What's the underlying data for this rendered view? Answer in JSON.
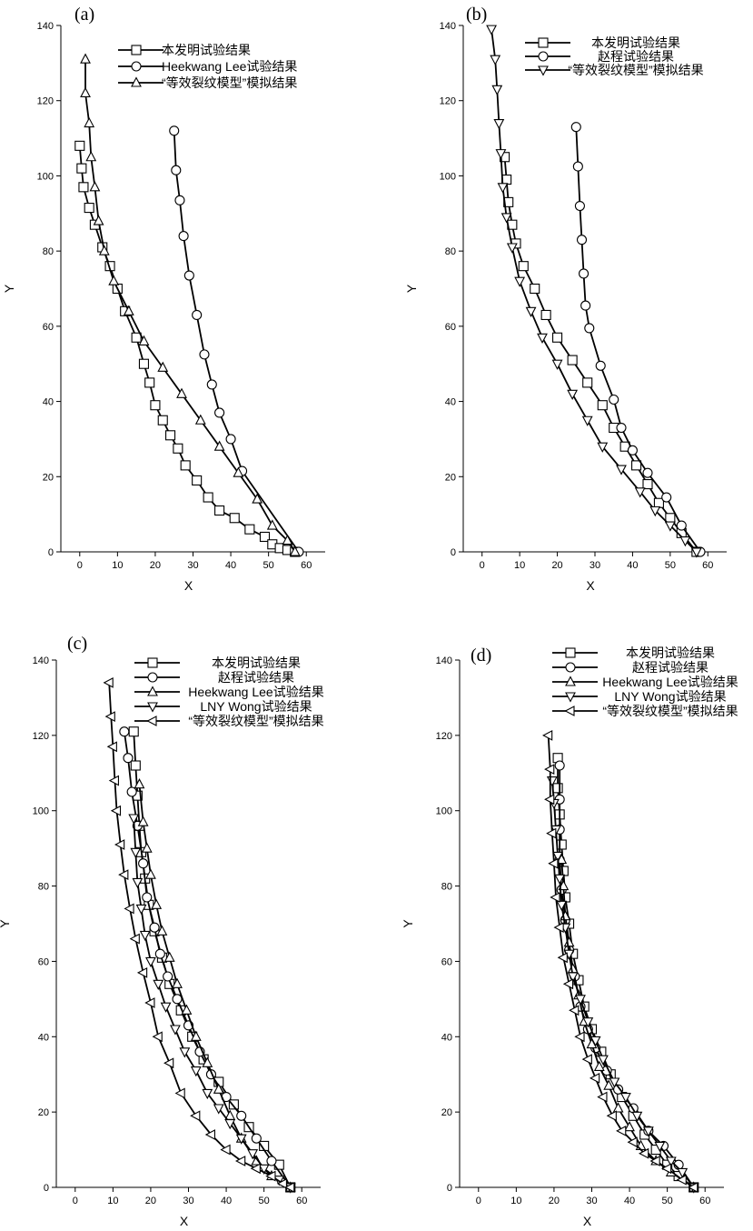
{
  "chart_data": [
    {
      "type": "line",
      "panel_label": "(a)",
      "xlabel": "X",
      "ylabel": "Y",
      "xlim": [
        -5,
        65
      ],
      "ylim": [
        0,
        140
      ],
      "xticks": [
        0,
        10,
        20,
        30,
        40,
        50,
        60
      ],
      "yticks": [
        0,
        20,
        40,
        60,
        80,
        100,
        120,
        140
      ],
      "grid": false,
      "legend_position": "top-right",
      "series": [
        {
          "name": "本发明试验结果",
          "marker": "square",
          "x": [
            0,
            0.5,
            1,
            2.5,
            4,
            6,
            8,
            10,
            12,
            15,
            17,
            18.5,
            20,
            22,
            24,
            26,
            28,
            31,
            34,
            37,
            41,
            45,
            49,
            51,
            53,
            55,
            57
          ],
          "y": [
            108,
            102,
            97,
            91.5,
            87,
            81,
            76,
            70,
            64,
            57,
            50,
            45,
            39,
            35,
            31,
            27.5,
            23,
            19,
            14.5,
            11,
            9,
            6,
            4,
            2,
            1,
            0.5,
            0
          ]
        },
        {
          "name": "Heekwang Lee试验结果",
          "marker": "circle",
          "x": [
            25,
            25.5,
            26.5,
            27.5,
            29,
            31,
            33,
            35,
            37,
            40,
            43,
            58
          ],
          "y": [
            112,
            101.5,
            93.5,
            84,
            73.5,
            63,
            52.5,
            44.5,
            37,
            30,
            21.5,
            0
          ]
        },
        {
          "name": "“等效裂纹模型”模拟结果",
          "marker": "triangle-up",
          "x": [
            1.5,
            1.5,
            2.5,
            3,
            4,
            5,
            6.5,
            9,
            13,
            17,
            22,
            27,
            32,
            37,
            42,
            47,
            51,
            55,
            57
          ],
          "y": [
            131,
            122,
            114,
            105,
            97,
            88,
            80,
            72,
            64,
            56,
            49,
            42,
            35,
            28,
            21,
            14,
            7,
            3,
            0
          ]
        }
      ]
    },
    {
      "type": "line",
      "panel_label": "(b)",
      "xlabel": "X",
      "ylabel": "Y",
      "xlim": [
        -5,
        65
      ],
      "ylim": [
        0,
        140
      ],
      "xticks": [
        0,
        10,
        20,
        30,
        40,
        50,
        60
      ],
      "yticks": [
        0,
        20,
        40,
        60,
        80,
        100,
        120,
        140
      ],
      "grid": false,
      "legend_position": "top-right",
      "series": [
        {
          "name": "本发明试验结果",
          "marker": "square",
          "x": [
            6,
            6.5,
            7,
            8,
            9,
            11,
            14,
            17,
            20,
            24,
            28,
            32,
            35,
            38,
            41,
            44,
            47,
            50,
            53,
            57
          ],
          "y": [
            105,
            99,
            93,
            87,
            82,
            76,
            70,
            63,
            57,
            51,
            45,
            39,
            33,
            28,
            23,
            18,
            13,
            9,
            5,
            0
          ]
        },
        {
          "name": "赵程试验结果",
          "marker": "circle",
          "x": [
            25,
            25.5,
            26,
            26.5,
            27,
            27.5,
            28.5,
            31.5,
            35,
            37,
            40,
            44,
            49,
            53,
            58
          ],
          "y": [
            113,
            102.5,
            92,
            83,
            74,
            65.5,
            59.5,
            49.5,
            40.5,
            33,
            27,
            21,
            14.5,
            7,
            0
          ]
        },
        {
          "name": "“等效裂纹模型”模拟结果",
          "marker": "triangle-down",
          "x": [
            2.5,
            3.5,
            4,
            4.5,
            5,
            5.5,
            6.5,
            8,
            10,
            13,
            16,
            20,
            24,
            28,
            32,
            37,
            42,
            46,
            50,
            54,
            57
          ],
          "y": [
            139,
            131,
            123,
            114,
            106,
            97,
            89,
            81,
            72,
            64,
            57,
            50,
            42,
            35,
            28,
            22,
            16,
            11,
            7,
            3,
            0
          ]
        }
      ]
    },
    {
      "type": "line",
      "panel_label": "(c)",
      "xlabel": "X",
      "ylabel": "Y",
      "xlim": [
        -5,
        65
      ],
      "ylim": [
        0,
        140
      ],
      "xticks": [
        0,
        10,
        20,
        30,
        40,
        50,
        60
      ],
      "yticks": [
        0,
        20,
        40,
        60,
        80,
        100,
        120,
        140
      ],
      "grid": false,
      "legend_position": "top-right",
      "series": [
        {
          "name": "本发明试验结果",
          "marker": "square",
          "x": [
            15.5,
            16,
            16.5,
            17,
            17.5,
            18.5,
            19.5,
            21,
            23,
            25,
            28,
            31,
            34,
            38,
            42,
            46,
            50,
            54,
            57
          ],
          "y": [
            121,
            112,
            104,
            96,
            89,
            82,
            75,
            68,
            61,
            54,
            47,
            40,
            34,
            28,
            22,
            16,
            11,
            6,
            0
          ]
        },
        {
          "name": "赵程试验结果",
          "marker": "circle",
          "x": [
            13,
            14,
            15,
            16.5,
            18,
            19,
            21,
            22.5,
            24.5,
            27,
            30,
            33,
            36,
            40,
            44,
            48,
            52,
            57
          ],
          "y": [
            121,
            114,
            105,
            96,
            86,
            77,
            69,
            62,
            56,
            50,
            43,
            36,
            30,
            24,
            19,
            13,
            7,
            0
          ]
        },
        {
          "name": "Heekwang Lee试验结果",
          "marker": "triangle-up",
          "x": [
            17,
            18,
            19,
            20,
            21.5,
            23,
            25,
            27,
            29.5,
            32,
            35,
            38,
            41,
            44,
            48,
            52,
            57
          ],
          "y": [
            107,
            97,
            90,
            83,
            75,
            68,
            61,
            54,
            47,
            40,
            33,
            26,
            19,
            13,
            7,
            3,
            0
          ]
        },
        {
          "name": "LNY Wong试验结果",
          "marker": "triangle-down",
          "x": [
            15.5,
            16,
            16.5,
            17.5,
            18.5,
            20,
            22,
            24,
            26.5,
            29,
            32,
            35,
            38,
            41,
            44,
            47,
            50,
            54,
            57
          ],
          "y": [
            98,
            89,
            81,
            74,
            67,
            60,
            54,
            48,
            42,
            36,
            31,
            25,
            21,
            17,
            13,
            9,
            5,
            2,
            0
          ]
        },
        {
          "name": "“等效裂纹模型”模拟结果",
          "marker": "triangle-left",
          "x": [
            9,
            9.5,
            10,
            10.5,
            11,
            12,
            13,
            14.5,
            16,
            18,
            20,
            22,
            25,
            28,
            32,
            36,
            40,
            44,
            48,
            52,
            55,
            57
          ],
          "y": [
            134,
            125,
            117,
            108,
            100,
            91,
            83,
            74,
            66,
            57,
            49,
            40,
            33,
            25,
            19,
            14,
            10,
            7,
            5,
            3,
            1,
            0
          ]
        }
      ]
    },
    {
      "type": "line",
      "panel_label": "(d)",
      "xlabel": "X",
      "ylabel": "Y",
      "xlim": [
        -5,
        65
      ],
      "ylim": [
        0,
        140
      ],
      "xticks": [
        0,
        10,
        20,
        30,
        40,
        50,
        60
      ],
      "yticks": [
        0,
        20,
        40,
        60,
        80,
        100,
        120,
        140
      ],
      "grid": false,
      "legend_position": "top-right",
      "series": [
        {
          "name": "本发明试验结果",
          "marker": "square",
          "x": [
            21,
            21,
            21.5,
            22,
            22.5,
            23,
            24,
            25,
            26.5,
            28,
            30,
            32.5,
            35,
            38,
            41,
            44,
            47,
            50,
            53,
            57
          ],
          "y": [
            114,
            106,
            99,
            91,
            84,
            77,
            70,
            62,
            55,
            48,
            42,
            36,
            30,
            24,
            19,
            14,
            10,
            6,
            3,
            0
          ]
        },
        {
          "name": "赵程试验结果",
          "marker": "circle",
          "x": [
            21.5,
            21.5,
            21.5,
            21.5,
            22,
            23,
            24,
            25.5,
            27,
            29,
            31,
            34,
            37,
            41,
            45,
            49,
            53,
            57
          ],
          "y": [
            112,
            103,
            95,
            87,
            79,
            71,
            63,
            56,
            48,
            42,
            37,
            31,
            26,
            21,
            15,
            11,
            6,
            0
          ]
        },
        {
          "name": "Heekwang Lee试验结果",
          "marker": "triangle-up",
          "x": [
            22,
            22.5,
            23,
            24,
            25,
            26.5,
            28,
            30,
            32,
            34.5,
            37,
            40,
            43,
            47,
            51,
            57
          ],
          "y": [
            87,
            80,
            72,
            65,
            58,
            51,
            44,
            38,
            32,
            27,
            21,
            16,
            11,
            7,
            4,
            0
          ]
        },
        {
          "name": "LNY Wong试验结果",
          "marker": "triangle-down",
          "x": [
            19.5,
            20,
            20.5,
            21,
            21.5,
            22,
            23,
            24,
            25,
            27,
            29,
            31,
            33,
            36,
            39,
            42,
            45,
            48,
            51,
            54,
            57
          ],
          "y": [
            108,
            102,
            95,
            88,
            82,
            75,
            69,
            62,
            56,
            50,
            44,
            39,
            34,
            28,
            24,
            19,
            15,
            11,
            7,
            4,
            0
          ]
        },
        {
          "name": "“等效裂纹模型”模拟结果",
          "marker": "triangle-left",
          "x": [
            18.5,
            19,
            19,
            19.5,
            20,
            20.5,
            21.5,
            22.5,
            24,
            25.5,
            27,
            29,
            31,
            33,
            35.5,
            38,
            41,
            44,
            47,
            50,
            54,
            57
          ],
          "y": [
            120,
            111,
            103,
            94,
            86,
            77,
            69,
            61,
            54,
            47,
            40,
            34,
            29,
            24,
            19,
            15,
            12,
            9,
            7,
            5,
            2,
            0
          ]
        }
      ]
    }
  ]
}
